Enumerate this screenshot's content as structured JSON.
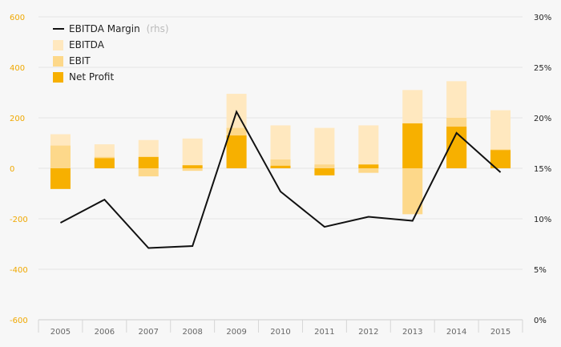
{
  "colors": {
    "background": "#f7f7f7",
    "ebitda": "#ffe8bf",
    "ebit": "#fdd88a",
    "net_profit": "#f7b000",
    "margin_line": "#111111",
    "grid": "#e6e6e6",
    "left_tick": "#f0a800"
  },
  "chart_data": {
    "type": "bar",
    "categories": [
      "2005",
      "2006",
      "2007",
      "2008",
      "2009",
      "2010",
      "2011",
      "2012",
      "2013",
      "2014",
      "2015"
    ],
    "series": [
      {
        "name": "EBITDA",
        "kind": "bar",
        "values": [
          135,
          95,
          112,
          118,
          295,
          170,
          160,
          170,
          310,
          345,
          230
        ]
      },
      {
        "name": "EBIT",
        "kind": "bar",
        "values": [
          90,
          45,
          -32,
          -10,
          160,
          35,
          15,
          -18,
          -182,
          200,
          75
        ]
      },
      {
        "name": "Net Profit",
        "kind": "bar",
        "values": [
          -82,
          40,
          45,
          12,
          130,
          10,
          -28,
          15,
          178,
          165,
          72
        ]
      },
      {
        "name": "EBITDA Margin",
        "kind": "line",
        "axis": "right",
        "values": [
          9.6,
          11.9,
          7.1,
          7.3,
          20.6,
          12.7,
          9.2,
          10.2,
          9.8,
          18.5,
          14.6
        ]
      }
    ],
    "legend": [
      {
        "label": "EBITDA Margin",
        "suffix": "(rhs)"
      },
      {
        "label": "EBITDA",
        "suffix": ""
      },
      {
        "label": "EBIT",
        "suffix": ""
      },
      {
        "label": "Net Profit",
        "suffix": ""
      }
    ],
    "y_left": {
      "lim": [
        -600,
        600
      ],
      "ticks": [
        "600",
        "400",
        "200",
        "0",
        "-200",
        "-400",
        "-600"
      ]
    },
    "y_right": {
      "lim": [
        0,
        30
      ],
      "ticks": [
        "30%",
        "25%",
        "20%",
        "15%",
        "10%",
        "5%",
        "0%"
      ]
    },
    "legend_position": "top-left",
    "grid": true
  }
}
